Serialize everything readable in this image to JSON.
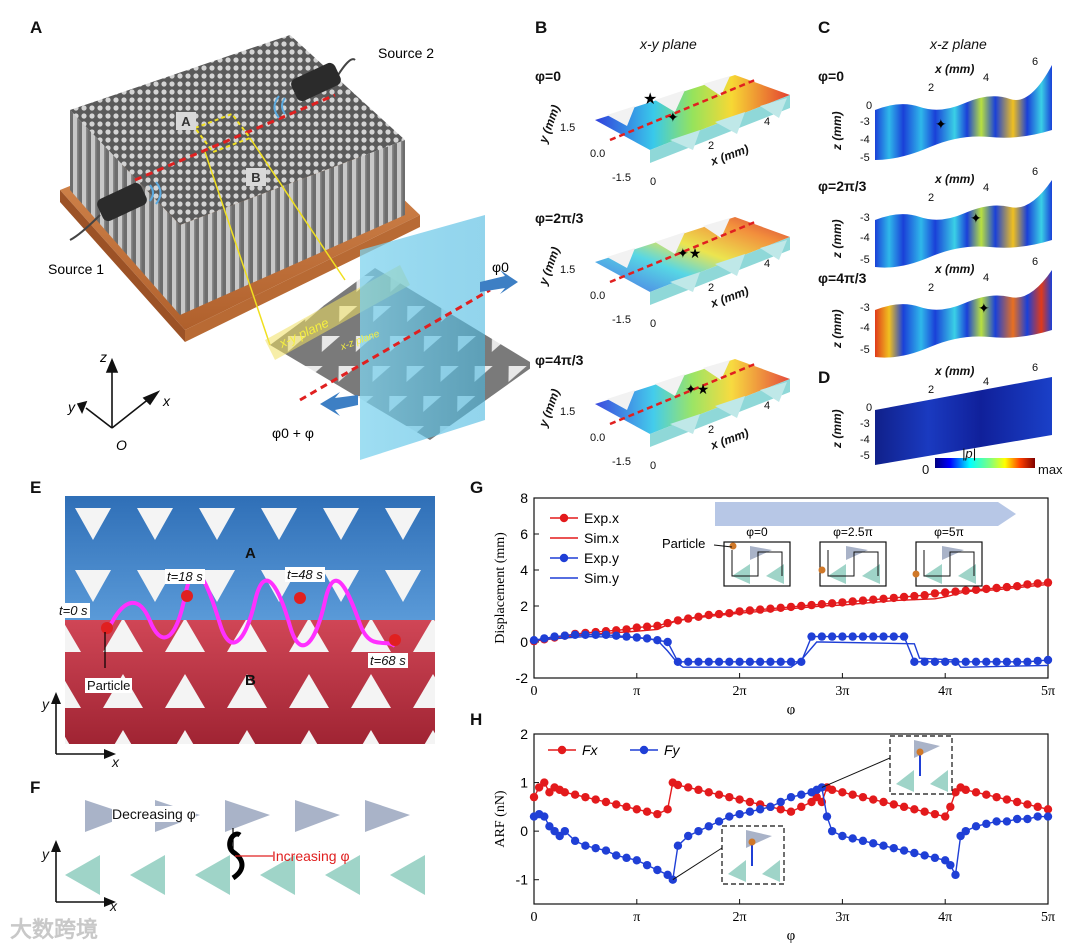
{
  "panels": {
    "A": {
      "letter": "A",
      "source1": "Source 1",
      "source2": "Source 2",
      "region_a": "A",
      "region_b": "B",
      "xy_plane": "x-y plane",
      "xz_plane": "x-z plane",
      "phi0": "φ0",
      "phi0_plus": "φ0 + φ",
      "axis_x": "x",
      "axis_y": "y",
      "axis_z": "z",
      "axis_o": "O"
    },
    "B": {
      "letter": "B",
      "title": "x-y plane",
      "phis": [
        "φ=0",
        "φ=2π/3",
        "φ=4π/3"
      ],
      "y_label": "y (mm)",
      "x_label": "x (mm)",
      "y_ticks": [
        "1.5",
        "0.0",
        "-1.5"
      ],
      "x_ticks": [
        "0",
        "2",
        "4"
      ]
    },
    "C": {
      "letter": "C",
      "title": "x-z plane",
      "phis": [
        "φ=0",
        "φ=2π/3",
        "φ=4π/3"
      ],
      "x_label": "x (mm)",
      "z_label": "z (mm)",
      "x_ticks": [
        "2",
        "4",
        "6"
      ],
      "z_ticks": [
        "0",
        "-3",
        "-4",
        "-5"
      ]
    },
    "D": {
      "letter": "D",
      "x_label": "x (mm)",
      "z_label": "z (mm)",
      "x_ticks": [
        "2",
        "4",
        "6"
      ],
      "z_ticks": [
        "0",
        "-3",
        "-4",
        "-5"
      ],
      "cbar_min": "0",
      "cbar_label": "|p|",
      "cbar_max": "max"
    },
    "E": {
      "letter": "E",
      "region_a": "A",
      "region_b": "B",
      "particle": "Particle",
      "times": [
        "t=0 s",
        "t=18 s",
        "t=48 s",
        "t=68 s"
      ],
      "axis_x": "x",
      "axis_y": "y"
    },
    "F": {
      "letter": "F",
      "decreasing": "Decreasing φ",
      "increasing": "Increasing φ",
      "axis_x": "x",
      "axis_y": "y"
    },
    "G": {
      "letter": "G"
    },
    "H": {
      "letter": "H"
    }
  },
  "watermark": "大数跨境",
  "chart_data": [
    {
      "id": "G",
      "type": "line",
      "xlabel": "φ",
      "ylabel": "Displacement (mm)",
      "xlim": [
        0,
        5
      ],
      "ylim": [
        -2,
        8
      ],
      "x_ticks": [
        "0",
        "π",
        "2π",
        "3π",
        "4π",
        "5π"
      ],
      "y_ticks": [
        "-2",
        "0",
        "2",
        "4",
        "6",
        "8"
      ],
      "legend": [
        "Exp.x",
        "Sim.x",
        "Exp.y",
        "Sim.y"
      ],
      "inset": {
        "labels": [
          "φ=0",
          "φ=2.5π",
          "φ=5π"
        ],
        "particle_label": "Particle"
      },
      "series": [
        {
          "name": "Exp.x",
          "color": "#e31a1c",
          "marker": true,
          "x": [
            0,
            0.1,
            0.2,
            0.3,
            0.4,
            0.5,
            0.6,
            0.7,
            0.8,
            0.9,
            1.0,
            1.1,
            1.2,
            1.3,
            1.4,
            1.5,
            1.6,
            1.7,
            1.8,
            1.9,
            2.0,
            2.1,
            2.2,
            2.3,
            2.4,
            2.5,
            2.6,
            2.7,
            2.8,
            2.9,
            3.0,
            3.1,
            3.2,
            3.3,
            3.4,
            3.5,
            3.6,
            3.7,
            3.8,
            3.9,
            4.0,
            4.1,
            4.2,
            4.3,
            4.4,
            4.5,
            4.6,
            4.7,
            4.8,
            4.9,
            5.0
          ],
          "y": [
            0.05,
            0.15,
            0.25,
            0.35,
            0.45,
            0.5,
            0.55,
            0.6,
            0.65,
            0.7,
            0.8,
            0.85,
            0.9,
            1.05,
            1.2,
            1.3,
            1.4,
            1.5,
            1.55,
            1.6,
            1.7,
            1.75,
            1.8,
            1.85,
            1.9,
            1.95,
            2.0,
            2.05,
            2.1,
            2.15,
            2.2,
            2.25,
            2.3,
            2.35,
            2.4,
            2.45,
            2.5,
            2.55,
            2.6,
            2.7,
            2.75,
            2.8,
            2.85,
            2.9,
            2.95,
            3.0,
            3.05,
            3.1,
            3.2,
            3.25,
            3.3
          ]
        },
        {
          "name": "Sim.x",
          "color": "#e31a1c",
          "marker": false,
          "x": [
            0,
            0.5,
            1.0,
            1.2,
            1.35,
            1.5,
            2.0,
            2.5,
            2.8,
            3.0,
            3.5,
            3.9,
            4.0,
            4.2,
            4.5,
            5.0
          ],
          "y": [
            0.05,
            0.4,
            0.6,
            0.7,
            1.1,
            1.3,
            1.6,
            1.85,
            2.0,
            2.05,
            2.3,
            2.4,
            2.5,
            2.8,
            2.9,
            3.2
          ]
        },
        {
          "name": "Exp.y",
          "color": "#1f3fd6",
          "marker": true,
          "x": [
            0,
            0.1,
            0.2,
            0.3,
            0.4,
            0.5,
            0.6,
            0.7,
            0.8,
            0.9,
            1.0,
            1.1,
            1.2,
            1.3,
            1.4,
            1.5,
            1.6,
            1.7,
            1.8,
            1.9,
            2.0,
            2.1,
            2.2,
            2.3,
            2.4,
            2.5,
            2.6,
            2.7,
            2.8,
            2.9,
            3.0,
            3.1,
            3.2,
            3.3,
            3.4,
            3.5,
            3.6,
            3.7,
            3.8,
            3.9,
            4.0,
            4.1,
            4.2,
            4.3,
            4.4,
            4.5,
            4.6,
            4.7,
            4.8,
            4.9,
            5.0
          ],
          "y": [
            0.1,
            0.2,
            0.3,
            0.35,
            0.4,
            0.4,
            0.4,
            0.4,
            0.35,
            0.3,
            0.25,
            0.2,
            0.1,
            0.0,
            -1.1,
            -1.1,
            -1.1,
            -1.1,
            -1.1,
            -1.1,
            -1.1,
            -1.1,
            -1.1,
            -1.1,
            -1.1,
            -1.1,
            -1.1,
            0.3,
            0.3,
            0.3,
            0.3,
            0.3,
            0.3,
            0.3,
            0.3,
            0.3,
            0.3,
            -1.1,
            -1.1,
            -1.1,
            -1.1,
            -1.1,
            -1.1,
            -1.1,
            -1.1,
            -1.1,
            -1.1,
            -1.1,
            -1.1,
            -1.05,
            -1.0
          ]
        },
        {
          "name": "Sim.y",
          "color": "#1f3fd6",
          "marker": false,
          "x": [
            0,
            0.5,
            1.0,
            1.2,
            1.3,
            1.4,
            1.45,
            2.5,
            2.6,
            2.75,
            2.8,
            3.7,
            3.75,
            4.1,
            4.15,
            4.2,
            5.0
          ],
          "y": [
            0.1,
            0.3,
            0.25,
            0.1,
            -0.5,
            -1.2,
            -1.4,
            -1.4,
            -1.0,
            0.0,
            0.0,
            -0.1,
            -0.9,
            -1.0,
            -1.4,
            -1.4,
            -1.3
          ]
        }
      ]
    },
    {
      "id": "H",
      "type": "line",
      "xlabel": "φ",
      "ylabel": "ARF (nN)",
      "xlim": [
        0,
        5
      ],
      "ylim": [
        -1.5,
        2
      ],
      "x_ticks": [
        "0",
        "π",
        "2π",
        "3π",
        "4π",
        "5π"
      ],
      "y_ticks": [
        "-1",
        "0",
        "1",
        "2"
      ],
      "legend": [
        "Fx",
        "Fy"
      ],
      "series": [
        {
          "name": "Fx",
          "color": "#e31a1c",
          "x": [
            0,
            0.05,
            0.1,
            0.15,
            0.2,
            0.25,
            0.3,
            0.4,
            0.5,
            0.6,
            0.7,
            0.8,
            0.9,
            1.0,
            1.1,
            1.2,
            1.3,
            1.35,
            1.4,
            1.5,
            1.6,
            1.7,
            1.8,
            1.9,
            2.0,
            2.1,
            2.2,
            2.3,
            2.4,
            2.5,
            2.6,
            2.7,
            2.75,
            2.8,
            2.85,
            2.9,
            3.0,
            3.1,
            3.2,
            3.3,
            3.4,
            3.5,
            3.6,
            3.7,
            3.8,
            3.9,
            4.0,
            4.05,
            4.1,
            4.15,
            4.2,
            4.3,
            4.4,
            4.5,
            4.6,
            4.7,
            4.8,
            4.9,
            5.0
          ],
          "y": [
            0.7,
            0.9,
            1.0,
            0.8,
            0.9,
            0.85,
            0.8,
            0.75,
            0.7,
            0.65,
            0.6,
            0.55,
            0.5,
            0.45,
            0.4,
            0.35,
            0.45,
            1.0,
            0.95,
            0.9,
            0.85,
            0.8,
            0.75,
            0.7,
            0.65,
            0.6,
            0.55,
            0.5,
            0.45,
            0.4,
            0.5,
            0.6,
            0.7,
            0.6,
            0.9,
            0.85,
            0.8,
            0.75,
            0.7,
            0.65,
            0.6,
            0.55,
            0.5,
            0.45,
            0.4,
            0.35,
            0.3,
            0.5,
            0.8,
            0.9,
            0.85,
            0.8,
            0.75,
            0.7,
            0.65,
            0.6,
            0.55,
            0.5,
            0.45
          ]
        },
        {
          "name": "Fy",
          "color": "#1f3fd6",
          "x": [
            0,
            0.05,
            0.1,
            0.15,
            0.2,
            0.25,
            0.3,
            0.4,
            0.5,
            0.6,
            0.7,
            0.8,
            0.9,
            1.0,
            1.1,
            1.2,
            1.3,
            1.35,
            1.4,
            1.5,
            1.6,
            1.7,
            1.8,
            1.9,
            2.0,
            2.1,
            2.2,
            2.3,
            2.4,
            2.5,
            2.6,
            2.7,
            2.75,
            2.8,
            2.85,
            2.9,
            3.0,
            3.1,
            3.2,
            3.3,
            3.4,
            3.5,
            3.6,
            3.7,
            3.8,
            3.9,
            4.0,
            4.05,
            4.1,
            4.15,
            4.2,
            4.3,
            4.4,
            4.5,
            4.6,
            4.7,
            4.8,
            4.9,
            5.0
          ],
          "y": [
            0.3,
            0.35,
            0.3,
            0.1,
            0.0,
            -0.1,
            0.0,
            -0.2,
            -0.3,
            -0.35,
            -0.4,
            -0.5,
            -0.55,
            -0.6,
            -0.7,
            -0.8,
            -0.9,
            -1.0,
            -0.3,
            -0.1,
            0.0,
            0.1,
            0.2,
            0.3,
            0.35,
            0.4,
            0.45,
            0.5,
            0.6,
            0.7,
            0.75,
            0.8,
            0.85,
            0.9,
            0.3,
            0.0,
            -0.1,
            -0.15,
            -0.2,
            -0.25,
            -0.3,
            -0.35,
            -0.4,
            -0.45,
            -0.5,
            -0.55,
            -0.6,
            -0.7,
            -0.9,
            -0.1,
            0.0,
            0.1,
            0.15,
            0.2,
            0.2,
            0.25,
            0.25,
            0.3,
            0.3
          ]
        }
      ]
    }
  ]
}
